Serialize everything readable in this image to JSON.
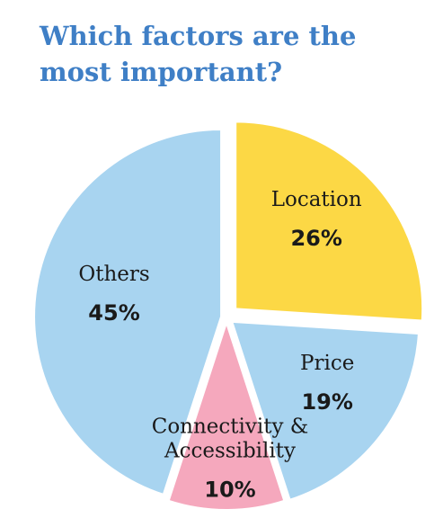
{
  "title": "Which factors are the most important?",
  "chart_data": {
    "type": "pie",
    "title": "Which factors are the most important?",
    "slices": [
      {
        "label": "Location",
        "label_lines": [
          "Location"
        ],
        "value": 26,
        "value_label": "26%",
        "color": "#fcd845"
      },
      {
        "label": "Price",
        "label_lines": [
          "Price"
        ],
        "value": 19,
        "value_label": "19%",
        "color": "#a8d4f0"
      },
      {
        "label": "Connectivity & Accessibility",
        "label_lines": [
          "Connectivity &",
          "Accessibility"
        ],
        "value": 10,
        "value_label": "10%",
        "color": "#f5a8bd"
      },
      {
        "label": "Others",
        "label_lines": [
          "Others"
        ],
        "value": 45,
        "value_label": "45%",
        "color": "#a8d4f0"
      }
    ],
    "exploded": true,
    "legend": "none"
  }
}
